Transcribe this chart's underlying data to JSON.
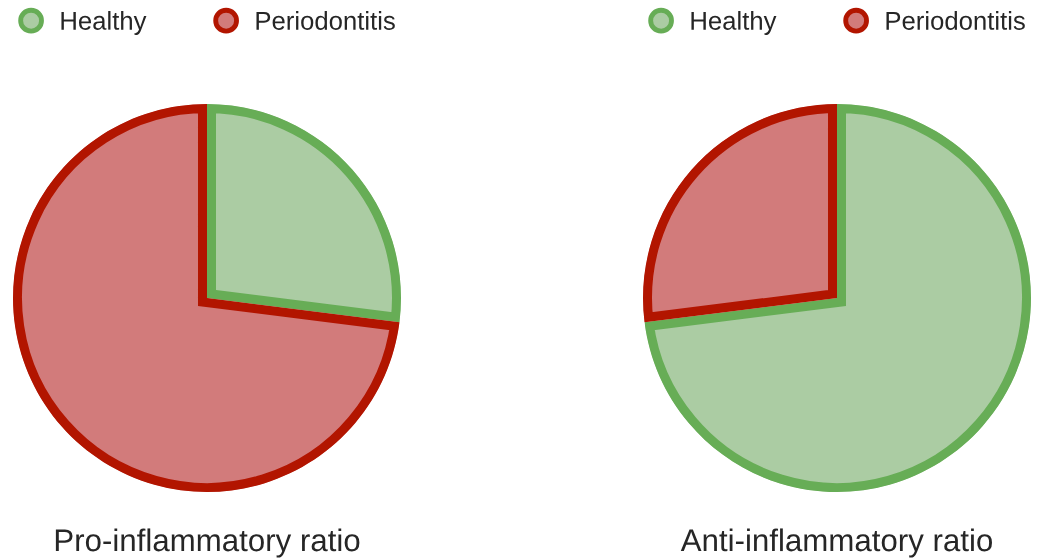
{
  "chart_data": [
    {
      "type": "pie",
      "title": "Pro-inflammatory ratio",
      "categories": [
        "Healthy",
        "Periodontitis"
      ],
      "values": [
        27,
        73
      ],
      "colors": [
        "#abcca3",
        "#d27b7b"
      ],
      "legend": "top"
    },
    {
      "type": "pie",
      "title": "Anti-inflammatory ratio",
      "categories": [
        "Healthy",
        "Periodontitis"
      ],
      "values": [
        73,
        27
      ],
      "colors": [
        "#abcca3",
        "#d27b7b"
      ],
      "legend": "top"
    }
  ]
}
